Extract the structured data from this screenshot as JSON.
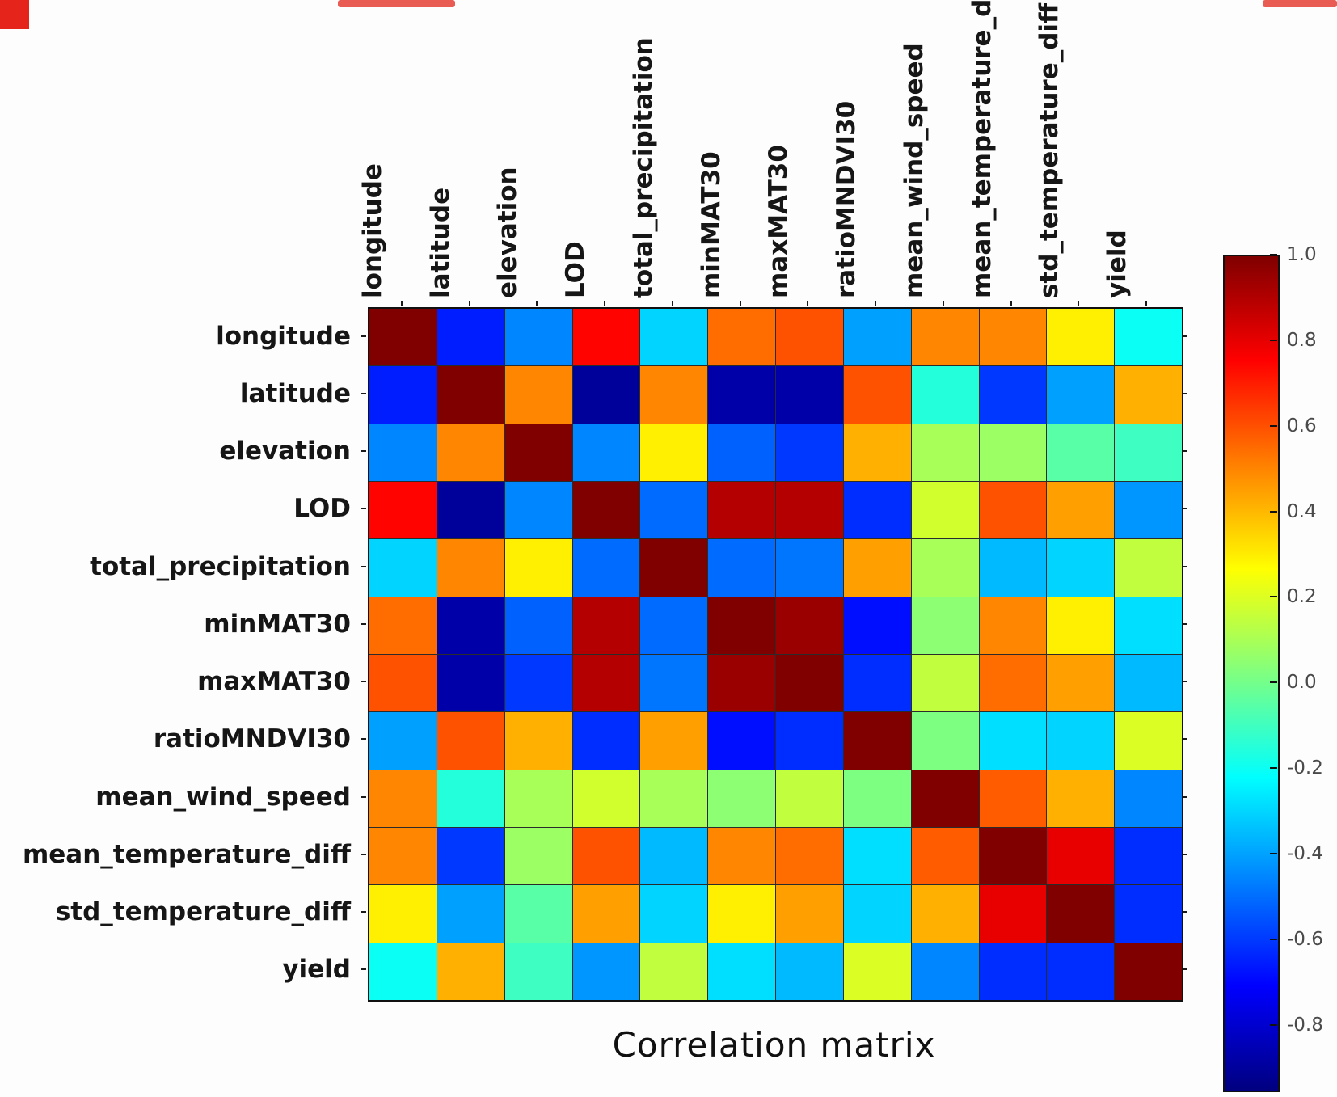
{
  "figure": {
    "title": "Correlation matrix"
  },
  "chart_data": {
    "type": "heatmap",
    "title": "Correlation matrix",
    "categories": [
      "longitude",
      "latitude",
      "elevation",
      "LOD",
      "total_precipitation",
      "minMAT30",
      "maxMAT30",
      "ratioMNDVI30",
      "mean_wind_speed",
      "mean_temperature_diff",
      "std_temperature_diff",
      "yield"
    ],
    "matrix": [
      [
        1.0,
        -0.65,
        -0.45,
        0.75,
        -0.3,
        0.55,
        0.6,
        -0.4,
        0.5,
        0.5,
        0.3,
        -0.2
      ],
      [
        -0.65,
        1.0,
        0.5,
        -0.9,
        0.5,
        -0.87,
        -0.87,
        0.6,
        -0.15,
        -0.6,
        -0.4,
        0.42
      ],
      [
        -0.45,
        0.5,
        1.0,
        -0.45,
        0.3,
        -0.52,
        -0.6,
        0.42,
        0.1,
        0.08,
        -0.05,
        -0.1
      ],
      [
        0.75,
        -0.9,
        -0.45,
        1.0,
        -0.5,
        0.9,
        0.9,
        -0.62,
        0.18,
        0.6,
        0.45,
        -0.42
      ],
      [
        -0.3,
        0.5,
        0.3,
        -0.5,
        1.0,
        -0.5,
        -0.48,
        0.45,
        0.1,
        -0.35,
        -0.3,
        0.15
      ],
      [
        0.55,
        -0.87,
        -0.52,
        0.9,
        -0.5,
        1.0,
        0.95,
        -0.68,
        0.05,
        0.5,
        0.3,
        -0.28
      ],
      [
        0.6,
        -0.87,
        -0.6,
        0.9,
        -0.48,
        0.95,
        1.0,
        -0.62,
        0.15,
        0.55,
        0.45,
        -0.35
      ],
      [
        -0.4,
        0.6,
        0.42,
        -0.62,
        0.45,
        -0.68,
        -0.62,
        1.0,
        0.02,
        -0.28,
        -0.3,
        0.2
      ],
      [
        0.5,
        -0.15,
        0.1,
        0.18,
        0.1,
        0.05,
        0.15,
        0.02,
        1.0,
        0.58,
        0.42,
        -0.45
      ],
      [
        0.5,
        -0.6,
        0.08,
        0.6,
        -0.35,
        0.5,
        0.55,
        -0.28,
        0.58,
        1.0,
        0.8,
        -0.62
      ],
      [
        0.3,
        -0.4,
        -0.05,
        0.45,
        -0.3,
        0.3,
        0.45,
        -0.3,
        0.42,
        0.8,
        1.0,
        -0.62
      ],
      [
        -0.2,
        0.42,
        -0.1,
        -0.42,
        0.15,
        -0.28,
        -0.35,
        0.2,
        -0.45,
        -0.62,
        -0.62,
        1.0
      ]
    ],
    "colormap": "jet",
    "vmin": -0.95,
    "vmax": 1.0,
    "colorbar_ticks": [
      1.0,
      0.8,
      0.6,
      0.4,
      0.2,
      0.0,
      -0.2,
      -0.4,
      -0.6,
      -0.8
    ],
    "legend_position": "right-colorbar",
    "grid": "thin-dark-cell-borders",
    "xlabel": "",
    "ylabel": ""
  },
  "decorations": {
    "corner_artifact_color": "#e5241c"
  }
}
